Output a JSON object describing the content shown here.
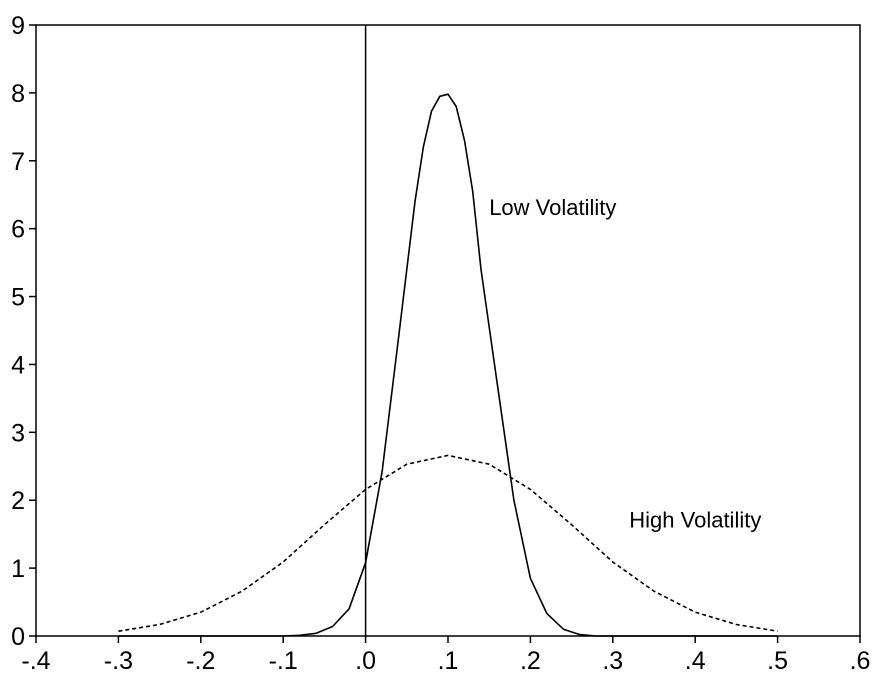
{
  "chart_data": {
    "type": "line",
    "title": "",
    "xlabel": "",
    "ylabel": "",
    "xlim": [
      -0.4,
      0.6
    ],
    "ylim": [
      0,
      9
    ],
    "x_ticks": [
      "-.4",
      "-.3",
      "-.2",
      "-.1",
      ".0",
      ".1",
      ".2",
      ".3",
      ".4",
      ".5",
      ".6"
    ],
    "x_tick_values": [
      -0.4,
      -0.3,
      -0.2,
      -0.1,
      0.0,
      0.1,
      0.2,
      0.3,
      0.4,
      0.5,
      0.6
    ],
    "y_ticks": [
      "0",
      "1",
      "2",
      "3",
      "4",
      "5",
      "6",
      "7",
      "8",
      "9"
    ],
    "y_tick_values": [
      0,
      1,
      2,
      3,
      4,
      5,
      6,
      7,
      8,
      9
    ],
    "grid": false,
    "vertical_reference_line": 0,
    "series": [
      {
        "label": "Low Volatility",
        "style": "solid",
        "color": "#000000",
        "x": [
          -0.3,
          -0.25,
          -0.2,
          -0.15,
          -0.1,
          -0.08,
          -0.06,
          -0.04,
          -0.02,
          0.0,
          0.02,
          0.04,
          0.06,
          0.07,
          0.08,
          0.09,
          0.1,
          0.11,
          0.12,
          0.13,
          0.14,
          0.16,
          0.18,
          0.2,
          0.22,
          0.24,
          0.26,
          0.28,
          0.3,
          0.35,
          0.4,
          0.45,
          0.5
        ],
        "y": [
          0,
          0,
          0,
          0,
          0,
          0.01,
          0.04,
          0.14,
          0.4,
          1.08,
          2.42,
          4.4,
          6.4,
          7.2,
          7.73,
          7.95,
          7.98,
          7.8,
          7.3,
          6.55,
          5.4,
          3.7,
          2.0,
          0.85,
          0.33,
          0.1,
          0.02,
          0,
          0,
          0,
          0,
          0,
          0
        ]
      },
      {
        "label": "High Volatility",
        "style": "dashed",
        "color": "#000000",
        "x": [
          -0.3,
          -0.25,
          -0.2,
          -0.15,
          -0.1,
          -0.05,
          0.0,
          0.05,
          0.1,
          0.15,
          0.2,
          0.25,
          0.3,
          0.35,
          0.4,
          0.45,
          0.5
        ],
        "y": [
          0.07,
          0.17,
          0.35,
          0.66,
          1.09,
          1.64,
          2.16,
          2.53,
          2.66,
          2.53,
          2.16,
          1.64,
          1.09,
          0.66,
          0.35,
          0.17,
          0.07
        ]
      }
    ],
    "annotations": [
      {
        "text": "Low Volatility",
        "x": 0.15,
        "y": 6.2
      },
      {
        "text": "High Volatility",
        "x": 0.32,
        "y": 1.6
      }
    ]
  }
}
